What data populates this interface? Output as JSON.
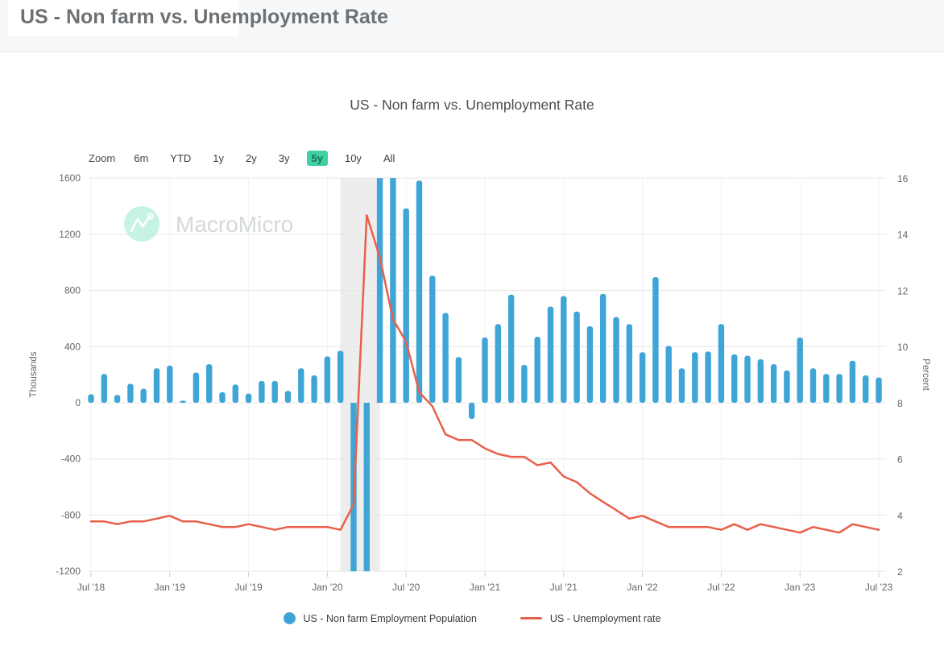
{
  "page": {
    "title": "US - Non farm vs. Unemployment Rate"
  },
  "chart": {
    "title": "US - Non farm vs. Unemployment Rate",
    "range_selector": {
      "zoom_label": "Zoom",
      "buttons": [
        "6m",
        "YTD",
        "1y",
        "2y",
        "3y",
        "5y",
        "10y",
        "All"
      ],
      "selected": "5y",
      "selected_color": "#3fd0a4"
    },
    "watermark": {
      "text": "MacroMicro",
      "circle_color": "#b9efe0",
      "text_color": "#d5d8da"
    },
    "legend": [
      {
        "label": "US - Non farm Employment Population",
        "color": "#3fa5d6",
        "marker": "circle"
      },
      {
        "label": "US - Unemployment rate",
        "color": "#e8604a",
        "marker": "line"
      }
    ]
  },
  "chart_data": {
    "type": "bar+line combo, dual y-axis, monthly time series",
    "x_monthly_start": "2018-07",
    "x_monthly_end": "2023-07",
    "x_tick_labels": [
      "Jul '18",
      "Jan '19",
      "Jul '19",
      "Jan '20",
      "Jul '20",
      "Jan '21",
      "Jul '21",
      "Jan '22",
      "Jul '22",
      "Jan '23",
      "Jul '23"
    ],
    "y_left": {
      "title": "Thousands",
      "ticks": [
        1600,
        1200,
        800,
        400,
        0,
        -400,
        -800,
        -1200
      ],
      "min": -1200,
      "max": 1600
    },
    "y_right": {
      "title": "Percent",
      "ticks": [
        16,
        14,
        12,
        10,
        8,
        6,
        4,
        2
      ],
      "min": 2,
      "max": 16
    },
    "plot_band": {
      "start_index": 19,
      "end_index": 22,
      "color": "#ededed"
    },
    "clipping_note": "bars are clipped to the visible y_left range",
    "series": [
      {
        "name": "US - Non farm Employment Population",
        "type": "bar",
        "axis": "left",
        "unit": "Thousands",
        "color": "#3fa5d6",
        "values": [
          60,
          205,
          55,
          135,
          100,
          245,
          265,
          15,
          215,
          275,
          75,
          130,
          65,
          155,
          155,
          85,
          245,
          195,
          330,
          370,
          -1683,
          -20679,
          2833,
          4846,
          1385,
          1583,
          905,
          640,
          325,
          -115,
          465,
          560,
          770,
          270,
          470,
          685,
          760,
          650,
          545,
          775,
          610,
          560,
          360,
          895,
          405,
          245,
          360,
          365,
          560,
          345,
          335,
          310,
          275,
          230,
          465,
          245,
          205,
          205,
          300,
          195,
          180
        ]
      },
      {
        "name": "US - Unemployment rate",
        "type": "line",
        "axis": "right",
        "unit": "Percent",
        "color": "#e8604a",
        "values": [
          3.8,
          3.8,
          3.7,
          3.8,
          3.8,
          3.9,
          4.0,
          3.8,
          3.8,
          3.7,
          3.6,
          3.6,
          3.7,
          3.6,
          3.5,
          3.6,
          3.6,
          3.6,
          3.6,
          3.5,
          4.4,
          14.7,
          13.2,
          11.0,
          10.2,
          8.4,
          7.9,
          6.9,
          6.7,
          6.7,
          6.4,
          6.2,
          6.1,
          6.1,
          5.8,
          5.9,
          5.4,
          5.2,
          4.8,
          4.5,
          4.2,
          3.9,
          4.0,
          3.8,
          3.6,
          3.6,
          3.6,
          3.6,
          3.5,
          3.7,
          3.5,
          3.7,
          3.6,
          3.5,
          3.4,
          3.6,
          3.5,
          3.4,
          3.7,
          3.6,
          3.5
        ]
      }
    ]
  }
}
